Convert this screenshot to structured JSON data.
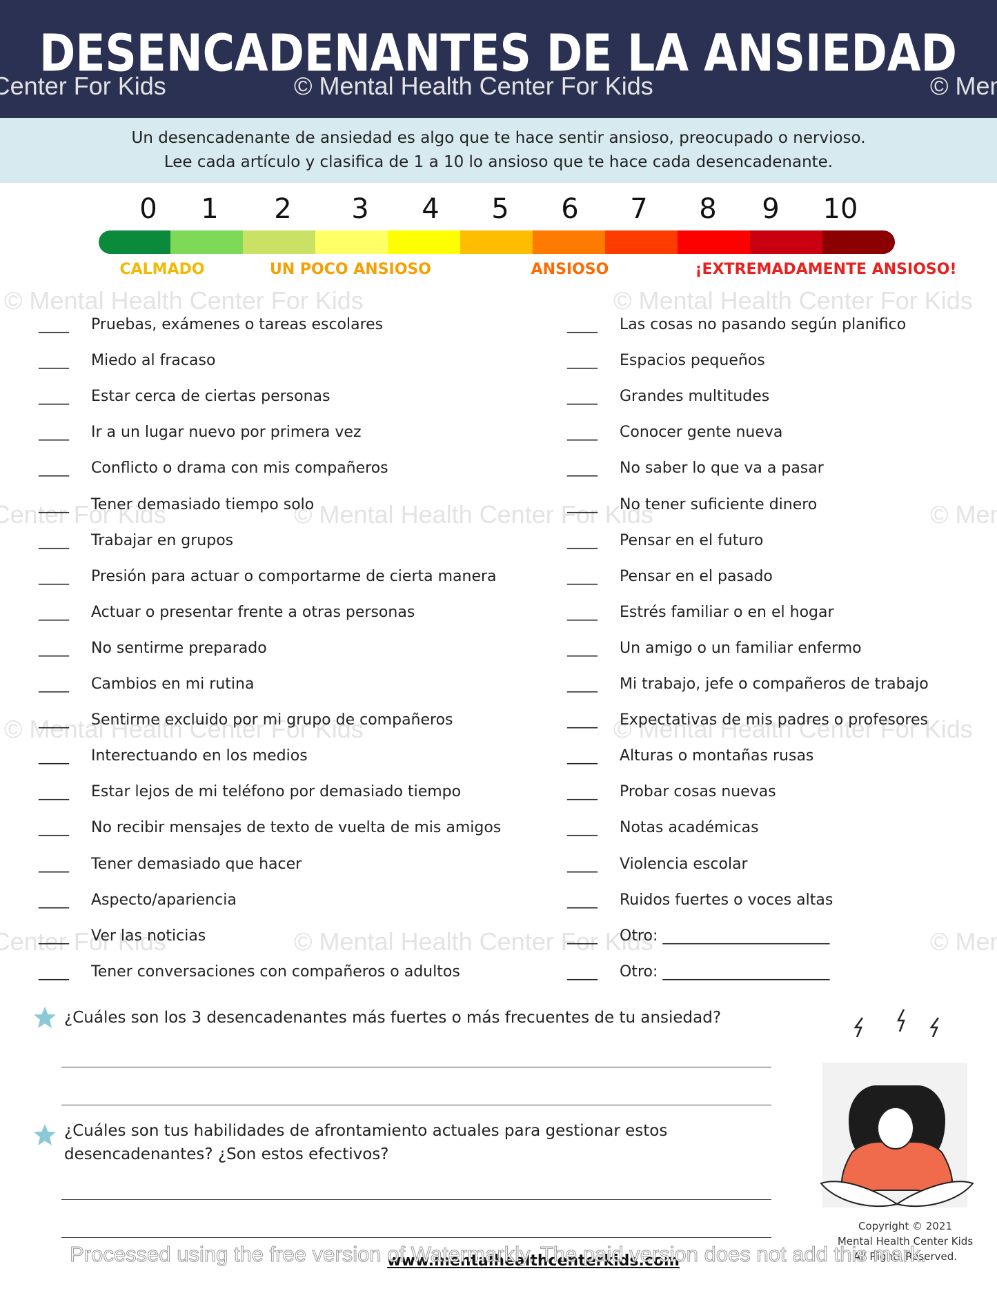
{
  "header": {
    "title": "DESENCADENANTES DE LA ANSIEDAD"
  },
  "intro": {
    "lines": [
      "Un desencadenante de ansiedad es algo que te hace sentir ansioso, preocupado o nervioso.",
      "Lee cada artículo y clasifica de 1 a 10 lo ansioso que te hace cada desencadenante."
    ]
  },
  "scale": {
    "numbers": [
      0,
      1,
      2,
      3,
      4,
      5,
      6,
      7,
      8,
      9,
      10
    ],
    "labels": [
      "CALMADO",
      "UN POCO ANSIOSO",
      "ANSIOSO",
      "¡EXTREMADAMENTE ANSIOSO!"
    ]
  },
  "items": {
    "blank": "____",
    "left": [
      "Pruebas, exámenes o tareas escolares",
      "Miedo al fracaso",
      "Estar cerca de ciertas personas",
      "Ir a un lugar nuevo por primera vez",
      "Conflicto o drama con mis compañeros",
      "Tener demasiado tiempo solo",
      "Trabajar en grupos",
      "Presión para actuar o comportarme de cierta manera",
      "Actuar o presentar frente a otras personas",
      "No sentirme preparado",
      "Cambios en mi rutina",
      "Sentirme excluido por mi grupo de compañeros",
      "Interectuando en los medios",
      "Estar lejos de mi teléfono por demasiado tiempo",
      "No recibir mensajes de texto de vuelta de mis amigos",
      "Tener demasiado que hacer",
      "Aspecto/apariencia",
      "Ver las noticias",
      "Tener conversaciones con compañeros o adultos"
    ],
    "right": [
      "Las cosas no pasando según planifico",
      "Espacios pequeños",
      "Grandes multitudes",
      "Conocer gente nueva",
      "No saber lo que va a pasar",
      "No tener suficiente dinero",
      "Pensar en el futuro",
      "Pensar en el pasado",
      "Estrés familiar o en el hogar",
      "Un amigo o un familiar enfermo",
      "Mi trabajo, jefe o compañeros de trabajo",
      "Expectativas de mis padres o profesores",
      "Alturas o montañas rusas",
      "Probar cosas nuevas",
      "Notas académicas",
      "Violencia escolar",
      "Ruidos fuertes o voces altas",
      "Otro: ______________________",
      "Otro: ______________________"
    ]
  },
  "questions": [
    "¿Cuáles son los 3 desencadenantes más fuertes o más frecuentes de tu ansiedad?",
    "¿Cuáles son tus habilidades de afrontamiento actuales para gestionar estos desencadenantes? ¿Son estos efectivos?"
  ],
  "copyright": [
    "Copyright © 2021",
    "Mental Health Center Kids",
    "All Rights Reserved."
  ],
  "website": "www.mentalhealthcenterkids.com",
  "watermark": "© Mental Health Center For Kids",
  "processed_note": "Processed using the free version of Watermarkly. The paid version does not add this mark."
}
